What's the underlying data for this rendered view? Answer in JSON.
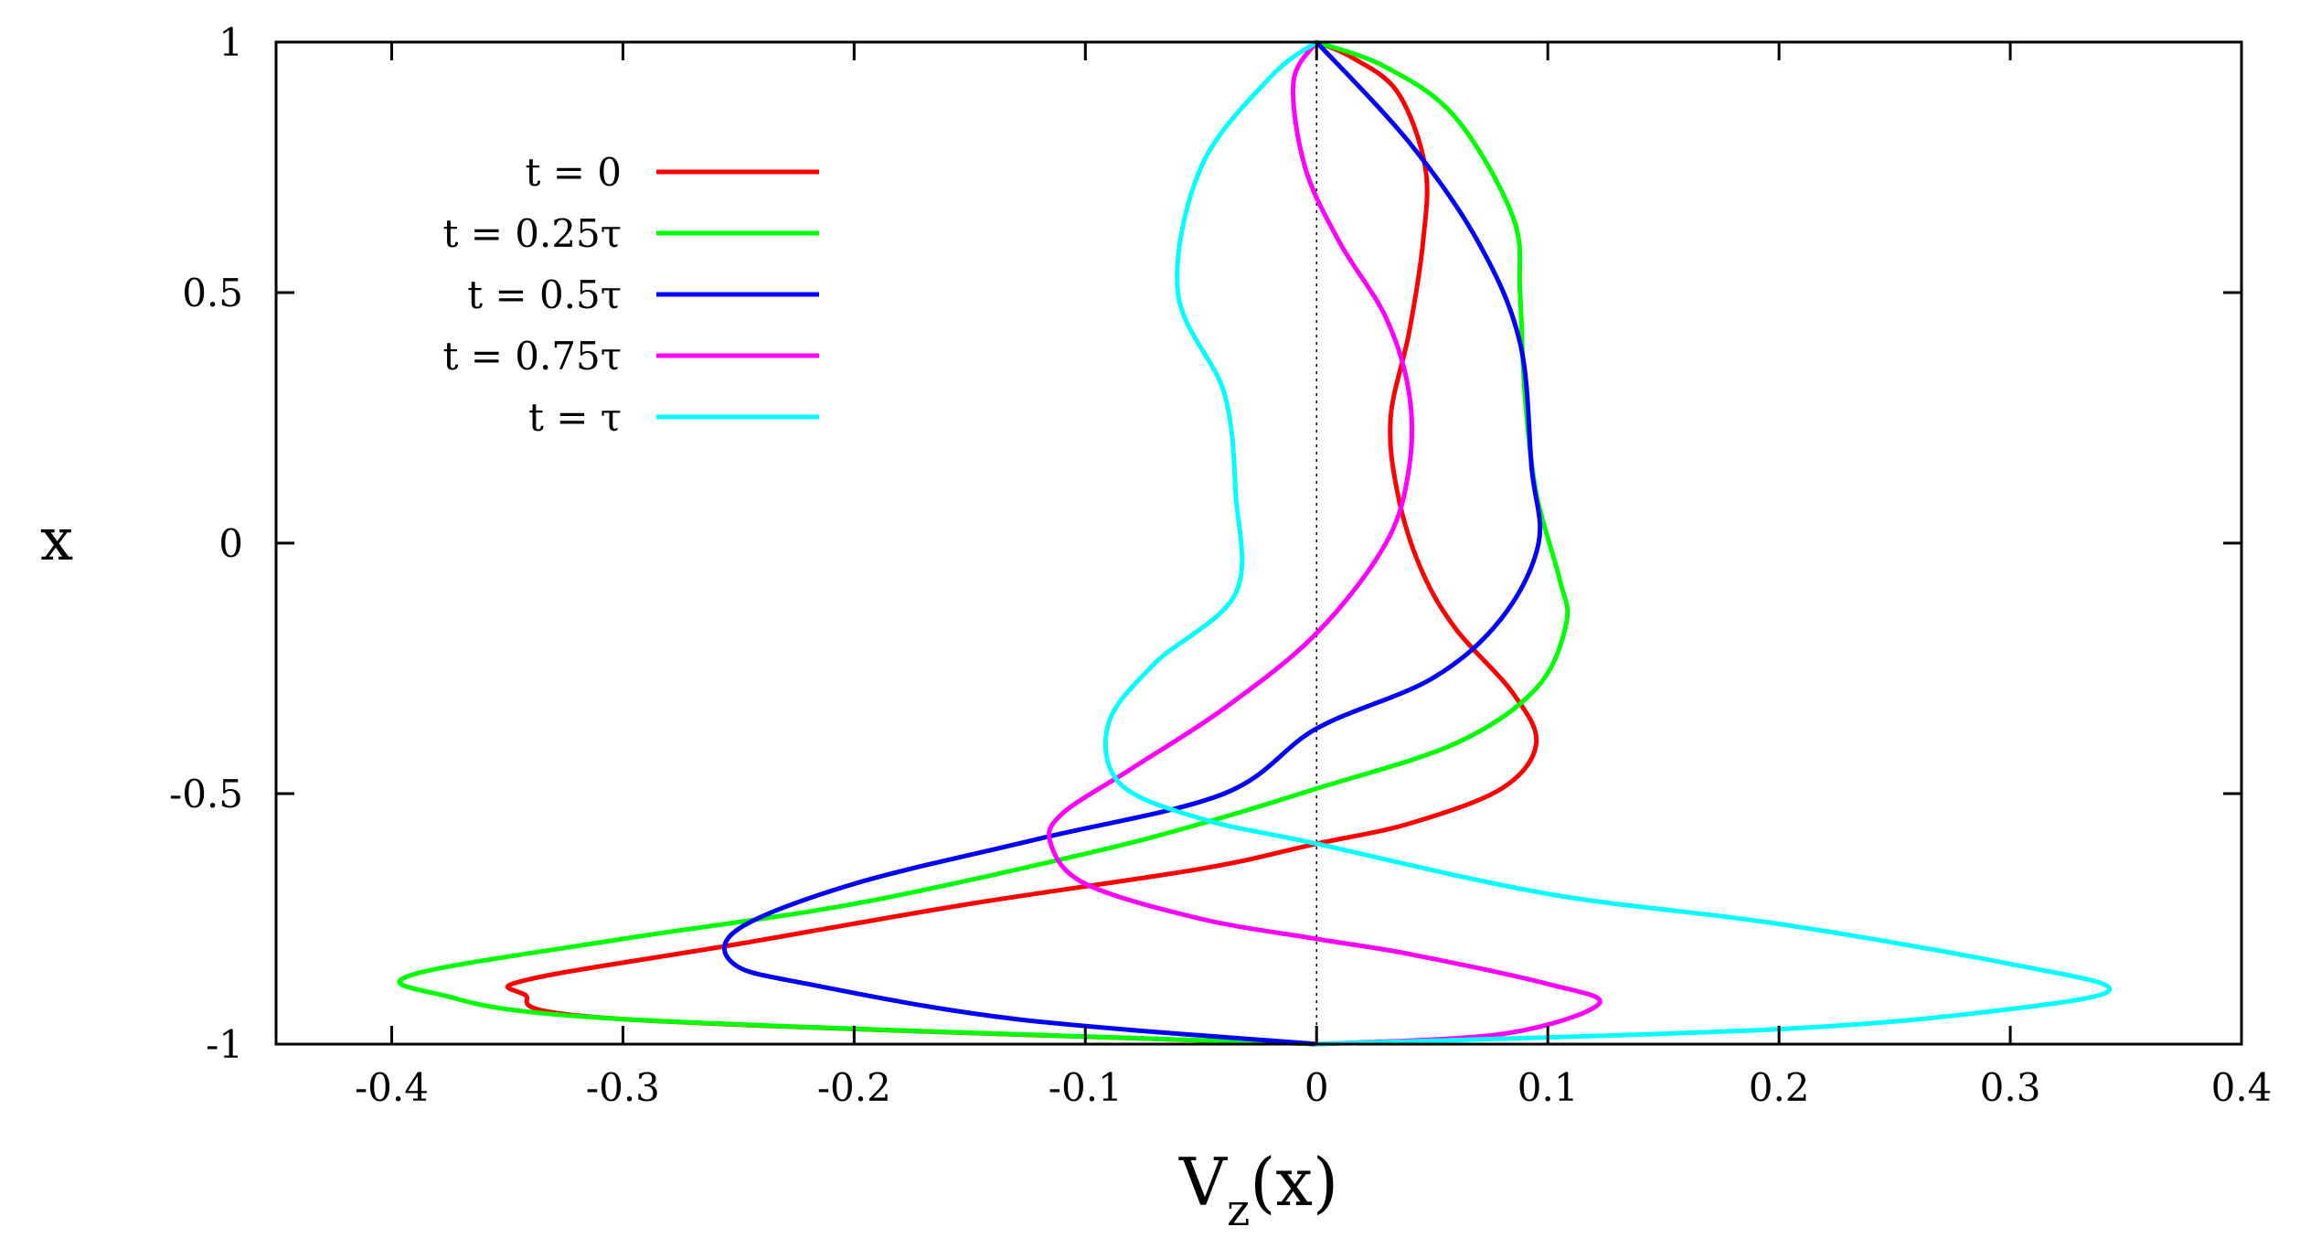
{
  "chart_data": {
    "type": "line",
    "title": "",
    "xlabel": {
      "base": "V",
      "subscript": "z",
      "suffix": "(x)"
    },
    "ylabel": "x",
    "xlim": [
      -0.45,
      0.4
    ],
    "ylim": [
      -1,
      1
    ],
    "xticks": [
      -0.4,
      -0.3,
      -0.2,
      -0.1,
      0,
      0.1,
      0.2,
      0.3,
      0.4
    ],
    "xtick_labels": [
      "-0.4",
      "-0.3",
      "-0.2",
      "-0.1",
      "0",
      "0.1",
      "0.2",
      "0.3",
      "0.4"
    ],
    "yticks": [
      -1,
      -0.5,
      0,
      0.5,
      1
    ],
    "ytick_labels": [
      "-1",
      "-0.5",
      "0",
      "0.5",
      "1"
    ],
    "grid": false,
    "reference_line": {
      "x": 0,
      "style": "dotted"
    },
    "legend_position": "top-left",
    "series": [
      {
        "name": "t = 0",
        "color": "#ff0000",
        "points": [
          [
            0,
            -1
          ],
          [
            -0.3,
            -0.95
          ],
          [
            -0.343,
            -0.9
          ],
          [
            -0.34,
            -0.87
          ],
          [
            -0.25,
            -0.8
          ],
          [
            -0.15,
            -0.72
          ],
          [
            -0.05,
            -0.65
          ],
          [
            0,
            -0.6
          ],
          [
            0.04,
            -0.56
          ],
          [
            0.08,
            -0.49
          ],
          [
            0.095,
            -0.4
          ],
          [
            0.085,
            -0.3
          ],
          [
            0.06,
            -0.17
          ],
          [
            0.045,
            -0.05
          ],
          [
            0.035,
            0.1
          ],
          [
            0.032,
            0.25
          ],
          [
            0.04,
            0.42
          ],
          [
            0.046,
            0.6
          ],
          [
            0.047,
            0.75
          ],
          [
            0.035,
            0.9
          ],
          [
            0.015,
            0.97
          ],
          [
            0,
            1
          ]
        ]
      },
      {
        "name": "t = 0.25τ",
        "color": "#00ff00",
        "points": [
          [
            0,
            -1
          ],
          [
            -0.3,
            -0.95
          ],
          [
            -0.38,
            -0.9
          ],
          [
            -0.39,
            -0.86
          ],
          [
            -0.3,
            -0.79
          ],
          [
            -0.2,
            -0.72
          ],
          [
            -0.1,
            -0.62
          ],
          [
            -0.05,
            -0.56
          ],
          [
            0,
            -0.49
          ],
          [
            0.06,
            -0.4
          ],
          [
            0.095,
            -0.29
          ],
          [
            0.108,
            -0.16
          ],
          [
            0.105,
            -0.07
          ],
          [
            0.095,
            0.1
          ],
          [
            0.09,
            0.3
          ],
          [
            0.088,
            0.5
          ],
          [
            0.085,
            0.65
          ],
          [
            0.06,
            0.85
          ],
          [
            0.03,
            0.95
          ],
          [
            0,
            1
          ]
        ]
      },
      {
        "name": "t = 0.5τ",
        "color": "#0000ff",
        "points": [
          [
            0,
            -1
          ],
          [
            -0.13,
            -0.95
          ],
          [
            -0.22,
            -0.88
          ],
          [
            -0.252,
            -0.84
          ],
          [
            -0.25,
            -0.77
          ],
          [
            -0.2,
            -0.68
          ],
          [
            -0.12,
            -0.59
          ],
          [
            -0.04,
            -0.5
          ],
          [
            0,
            -0.37
          ],
          [
            0.05,
            -0.27
          ],
          [
            0.08,
            -0.15
          ],
          [
            0.096,
            0
          ],
          [
            0.093,
            0.15
          ],
          [
            0.088,
            0.4
          ],
          [
            0.07,
            0.6
          ],
          [
            0.04,
            0.8
          ],
          [
            0,
            1
          ]
        ]
      },
      {
        "name": "t = 0.75τ",
        "color": "#ff00ff",
        "points": [
          [
            0,
            -1
          ],
          [
            0.08,
            -0.98
          ],
          [
            0.122,
            -0.92
          ],
          [
            0.1,
            -0.88
          ],
          [
            0.04,
            -0.82
          ],
          [
            0,
            -0.79
          ],
          [
            -0.05,
            -0.75
          ],
          [
            -0.1,
            -0.68
          ],
          [
            -0.115,
            -0.6
          ],
          [
            -0.11,
            -0.54
          ],
          [
            -0.08,
            -0.45
          ],
          [
            -0.04,
            -0.33
          ],
          [
            0,
            -0.18
          ],
          [
            0.03,
            0
          ],
          [
            0.04,
            0.15
          ],
          [
            0.04,
            0.3
          ],
          [
            0.03,
            0.45
          ],
          [
            0.01,
            0.6
          ],
          [
            -0.005,
            0.75
          ],
          [
            -0.01,
            0.92
          ],
          [
            0,
            1
          ]
        ]
      },
      {
        "name": "t = τ",
        "color": "#00ffff",
        "points": [
          [
            0,
            -1
          ],
          [
            0.2,
            -0.97
          ],
          [
            0.3,
            -0.93
          ],
          [
            0.343,
            -0.89
          ],
          [
            0.3,
            -0.84
          ],
          [
            0.2,
            -0.76
          ],
          [
            0.1,
            -0.7
          ],
          [
            0,
            -0.6
          ],
          [
            -0.05,
            -0.55
          ],
          [
            -0.085,
            -0.48
          ],
          [
            -0.09,
            -0.36
          ],
          [
            -0.07,
            -0.24
          ],
          [
            -0.035,
            -0.1
          ],
          [
            -0.035,
            0.1
          ],
          [
            -0.04,
            0.3
          ],
          [
            -0.06,
            0.5
          ],
          [
            -0.05,
            0.75
          ],
          [
            -0.02,
            0.93
          ],
          [
            0,
            1
          ]
        ]
      }
    ]
  }
}
